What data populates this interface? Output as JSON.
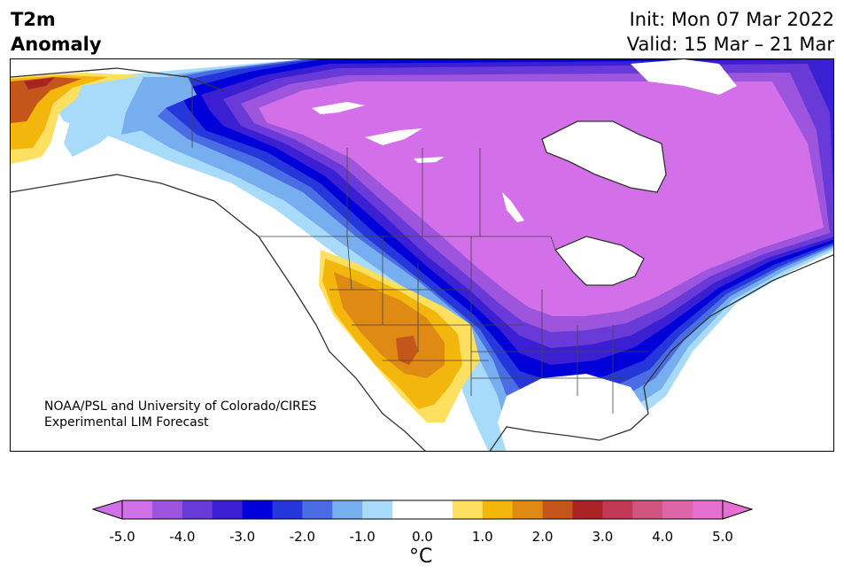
{
  "header": {
    "title_line1": "T2m",
    "title_line2": "Anomaly",
    "init_text": "Init: Mon 07 Mar 2022",
    "valid_text": "Valid: 15 Mar – 21 Mar"
  },
  "map": {
    "credit_line1": "NOAA/PSL and University of Colorado/CIRES",
    "credit_line2": "Experimental LIM Forecast"
  },
  "colorbar": {
    "tick_labels": [
      "-5.0",
      "-4.0",
      "-3.0",
      "-2.0",
      "-1.0",
      "0.0",
      "1.0",
      "2.0",
      "3.0",
      "4.0",
      "5.0"
    ],
    "unit_label": "°C",
    "colors": [
      "#d270e8",
      "#9d55de",
      "#6a3ad8",
      "#3b1fd2",
      "#0000d8",
      "#2536da",
      "#4b6de4",
      "#76aef0",
      "#a8dafa",
      "#ffffff",
      "#ffffff",
      "#fee060",
      "#f2b60c",
      "#de8a14",
      "#c4561b",
      "#a82424",
      "#c03a55",
      "#d0557e",
      "#dc66a6",
      "#e570d0"
    ],
    "min_color": "#d270e8",
    "max_color": "#e570d0"
  },
  "colors": {
    "cold_core": "#d370e9",
    "deep_blue": "#0000d8",
    "warm_core": "#de8a14",
    "hot_spot": "#c4561b",
    "coast": "#333333"
  }
}
